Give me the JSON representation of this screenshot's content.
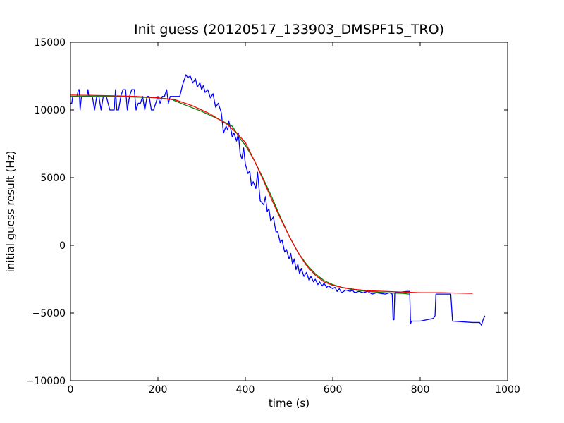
{
  "chart_data": {
    "type": "line",
    "title": "Init guess (20120517_133903_DMSPF15_TRO)",
    "xlabel": "time (s)",
    "ylabel": "initial guess result (Hz)",
    "xlim": [
      0,
      1000
    ],
    "ylim": [
      -10000,
      15000
    ],
    "xticks": [
      0,
      200,
      400,
      600,
      800,
      1000
    ],
    "yticks": [
      -10000,
      -5000,
      0,
      5000,
      10000,
      15000
    ],
    "grid": false,
    "legend": "none",
    "series": [
      {
        "color": "#0000ff",
        "points": [
          [
            0,
            10500
          ],
          [
            3,
            10500
          ],
          [
            5,
            11000
          ],
          [
            10,
            11000
          ],
          [
            15,
            11000
          ],
          [
            18,
            11500
          ],
          [
            20,
            11500
          ],
          [
            22,
            10000
          ],
          [
            25,
            11000
          ],
          [
            32,
            11000
          ],
          [
            38,
            11000
          ],
          [
            40,
            11500
          ],
          [
            42,
            11000
          ],
          [
            50,
            11000
          ],
          [
            55,
            10000
          ],
          [
            60,
            11000
          ],
          [
            65,
            11000
          ],
          [
            70,
            10000
          ],
          [
            75,
            11000
          ],
          [
            82,
            11000
          ],
          [
            90,
            10000
          ],
          [
            95,
            10000
          ],
          [
            100,
            10000
          ],
          [
            103,
            11500
          ],
          [
            106,
            10000
          ],
          [
            110,
            10000
          ],
          [
            115,
            11000
          ],
          [
            120,
            11500
          ],
          [
            126,
            11500
          ],
          [
            130,
            10000
          ],
          [
            135,
            11000
          ],
          [
            140,
            11500
          ],
          [
            146,
            11500
          ],
          [
            150,
            10000
          ],
          [
            155,
            10500
          ],
          [
            160,
            10500
          ],
          [
            165,
            11000
          ],
          [
            170,
            10000
          ],
          [
            175,
            11000
          ],
          [
            180,
            11000
          ],
          [
            185,
            10000
          ],
          [
            190,
            10000
          ],
          [
            195,
            10500
          ],
          [
            200,
            11000
          ],
          [
            205,
            10500
          ],
          [
            210,
            11000
          ],
          [
            215,
            11000
          ],
          [
            220,
            11500
          ],
          [
            224,
            10500
          ],
          [
            228,
            11000
          ],
          [
            232,
            11000
          ],
          [
            250,
            11000
          ],
          [
            256,
            11800
          ],
          [
            264,
            12600
          ],
          [
            268,
            12400
          ],
          [
            274,
            12500
          ],
          [
            280,
            12000
          ],
          [
            286,
            12300
          ],
          [
            290,
            11700
          ],
          [
            296,
            12000
          ],
          [
            300,
            11500
          ],
          [
            304,
            11800
          ],
          [
            308,
            11300
          ],
          [
            314,
            11500
          ],
          [
            320,
            10900
          ],
          [
            326,
            11200
          ],
          [
            332,
            10200
          ],
          [
            338,
            10500
          ],
          [
            345,
            9800
          ],
          [
            350,
            8300
          ],
          [
            356,
            8800
          ],
          [
            360,
            8500
          ],
          [
            362,
            9200
          ],
          [
            368,
            8400
          ],
          [
            370,
            8000
          ],
          [
            374,
            8300
          ],
          [
            380,
            7700
          ],
          [
            384,
            8300
          ],
          [
            388,
            6800
          ],
          [
            392,
            6400
          ],
          [
            396,
            7200
          ],
          [
            400,
            6000
          ],
          [
            406,
            5300
          ],
          [
            410,
            5500
          ],
          [
            414,
            4400
          ],
          [
            418,
            4700
          ],
          [
            424,
            4200
          ],
          [
            428,
            5400
          ],
          [
            434,
            3300
          ],
          [
            442,
            3000
          ],
          [
            446,
            3600
          ],
          [
            450,
            2500
          ],
          [
            454,
            2700
          ],
          [
            458,
            1800
          ],
          [
            464,
            2100
          ],
          [
            470,
            1000
          ],
          [
            474,
            1000
          ],
          [
            480,
            200
          ],
          [
            484,
            400
          ],
          [
            490,
            -500
          ],
          [
            494,
            -300
          ],
          [
            500,
            -1000
          ],
          [
            504,
            -600
          ],
          [
            508,
            -1400
          ],
          [
            512,
            -1000
          ],
          [
            516,
            -1800
          ],
          [
            520,
            -1400
          ],
          [
            524,
            -2100
          ],
          [
            528,
            -1700
          ],
          [
            534,
            -2300
          ],
          [
            540,
            -2000
          ],
          [
            546,
            -2600
          ],
          [
            550,
            -2300
          ],
          [
            556,
            -2700
          ],
          [
            560,
            -2500
          ],
          [
            566,
            -2900
          ],
          [
            570,
            -2700
          ],
          [
            576,
            -3000
          ],
          [
            580,
            -2800
          ],
          [
            586,
            -3100
          ],
          [
            590,
            -3000
          ],
          [
            600,
            -3200
          ],
          [
            605,
            -3100
          ],
          [
            610,
            -3400
          ],
          [
            615,
            -3200
          ],
          [
            620,
            -3500
          ],
          [
            630,
            -3300
          ],
          [
            640,
            -3400
          ],
          [
            645,
            -3300
          ],
          [
            650,
            -3500
          ],
          [
            660,
            -3400
          ],
          [
            670,
            -3500
          ],
          [
            680,
            -3400
          ],
          [
            690,
            -3600
          ],
          [
            700,
            -3500
          ],
          [
            720,
            -3600
          ],
          [
            730,
            -3500
          ],
          [
            736,
            -3600
          ],
          [
            738,
            -5500
          ],
          [
            740,
            -5500
          ],
          [
            742,
            -3500
          ],
          [
            770,
            -3400
          ],
          [
            776,
            -3400
          ],
          [
            778,
            -5800
          ],
          [
            780,
            -5600
          ],
          [
            800,
            -5600
          ],
          [
            830,
            -5400
          ],
          [
            834,
            -5200
          ],
          [
            836,
            -3600
          ],
          [
            870,
            -3600
          ],
          [
            874,
            -5600
          ],
          [
            920,
            -5700
          ],
          [
            936,
            -5700
          ],
          [
            940,
            -5900
          ],
          [
            945,
            -5400
          ],
          [
            948,
            -5200
          ]
        ]
      },
      {
        "color": "#008000",
        "points": [
          [
            0,
            11000
          ],
          [
            50,
            11000
          ],
          [
            100,
            11000
          ],
          [
            150,
            10950
          ],
          [
            200,
            10900
          ],
          [
            230,
            10800
          ],
          [
            260,
            10400
          ],
          [
            300,
            9900
          ],
          [
            340,
            9300
          ],
          [
            370,
            8800
          ],
          [
            390,
            7800
          ],
          [
            400,
            7400
          ],
          [
            420,
            6300
          ],
          [
            440,
            5000
          ],
          [
            460,
            3600
          ],
          [
            480,
            2100
          ],
          [
            500,
            700
          ],
          [
            520,
            -500
          ],
          [
            540,
            -1400
          ],
          [
            560,
            -2100
          ],
          [
            580,
            -2600
          ],
          [
            600,
            -2900
          ],
          [
            620,
            -3100
          ],
          [
            650,
            -3300
          ],
          [
            680,
            -3400
          ],
          [
            720,
            -3500
          ],
          [
            760,
            -3550
          ],
          [
            775,
            -3600
          ]
        ]
      },
      {
        "color": "#ff0000",
        "points": [
          [
            0,
            11100
          ],
          [
            50,
            11080
          ],
          [
            100,
            11050
          ],
          [
            150,
            11000
          ],
          [
            200,
            10900
          ],
          [
            240,
            10750
          ],
          [
            280,
            10300
          ],
          [
            320,
            9700
          ],
          [
            360,
            8900
          ],
          [
            380,
            8300
          ],
          [
            400,
            7600
          ],
          [
            420,
            6300
          ],
          [
            440,
            4900
          ],
          [
            460,
            3400
          ],
          [
            480,
            2000
          ],
          [
            500,
            700
          ],
          [
            520,
            -500
          ],
          [
            540,
            -1500
          ],
          [
            560,
            -2200
          ],
          [
            580,
            -2700
          ],
          [
            600,
            -2950
          ],
          [
            620,
            -3100
          ],
          [
            650,
            -3250
          ],
          [
            680,
            -3350
          ],
          [
            720,
            -3400
          ],
          [
            760,
            -3450
          ],
          [
            800,
            -3500
          ],
          [
            850,
            -3500
          ],
          [
            920,
            -3550
          ]
        ]
      }
    ]
  }
}
